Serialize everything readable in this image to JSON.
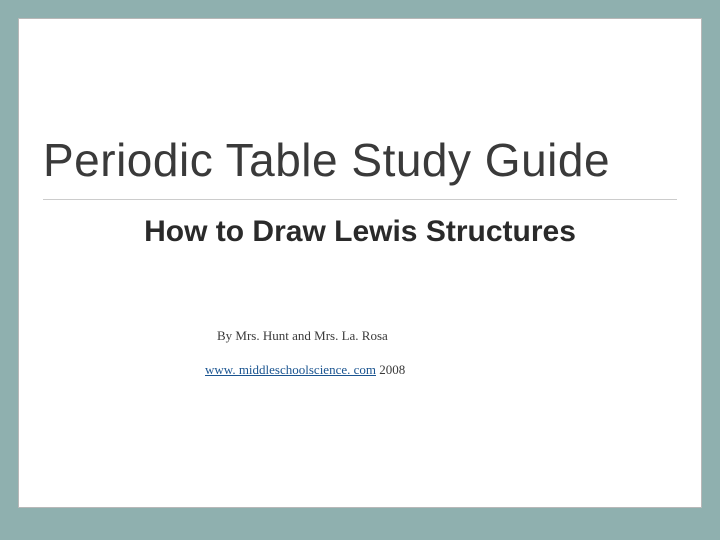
{
  "slide": {
    "background_color": "#8fb0af",
    "slide_background": "#ffffff",
    "border_color": "#b8b8b8",
    "title": "Periodic Table Study Guide",
    "title_color": "#3a3a3a",
    "title_fontsize": 46,
    "subtitle": "How to Draw Lewis Structures",
    "subtitle_fontsize": 30,
    "subtitle_color": "#2a2a2a",
    "authors": "By Mrs. Hunt and Mrs. La. Rosa",
    "link_text": "www. middleschoolscience. com",
    "link_color": "#1a5490",
    "year": " 2008",
    "divider_color": "#cccccc"
  }
}
